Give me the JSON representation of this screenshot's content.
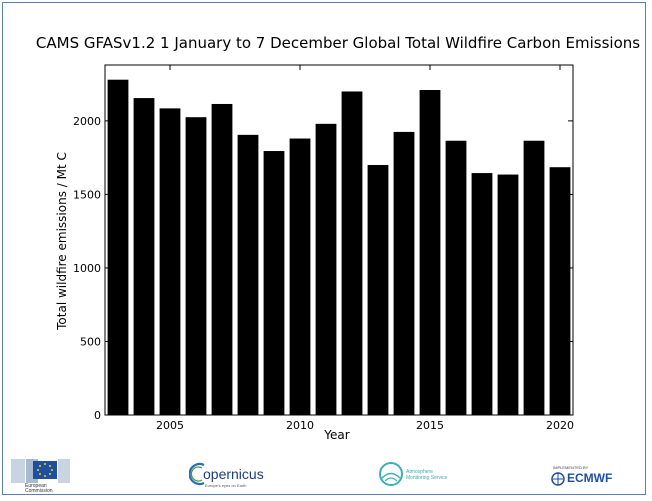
{
  "chart_data": {
    "type": "bar",
    "title": "CAMS GFASv1.2 1 January to 7 December Global Total Wildfire Carbon Emissions",
    "xlabel": "Year",
    "ylabel": "Total wildfire emissions / Mt C",
    "x": [
      2003,
      2004,
      2005,
      2006,
      2007,
      2008,
      2009,
      2010,
      2011,
      2012,
      2013,
      2014,
      2015,
      2016,
      2017,
      2018,
      2019,
      2020
    ],
    "values": [
      2280,
      2155,
      2085,
      2025,
      2115,
      1905,
      1795,
      1880,
      1980,
      2200,
      1700,
      1925,
      2210,
      1865,
      1645,
      1635,
      1865,
      1685
    ],
    "xticks": [
      2005,
      2010,
      2015,
      2020
    ],
    "yticks": [
      0,
      500,
      1000,
      1500,
      2000
    ],
    "xlim": [
      2002.5,
      2020.5
    ],
    "ylim": [
      0,
      2380
    ],
    "bar_color": "#000000",
    "grid": false
  },
  "footer": {
    "eu_label_1": "European",
    "eu_label_2": "Commission",
    "copernicus_name": "opernicus",
    "copernicus_tagline": "Europe's eyes on Earth",
    "atmosphere_line1": "Atmosphere",
    "atmosphere_line2": "Monitoring Service",
    "implemented_by": "IMPLEMENTED BY",
    "ecmwf_name": "ECMWF"
  }
}
